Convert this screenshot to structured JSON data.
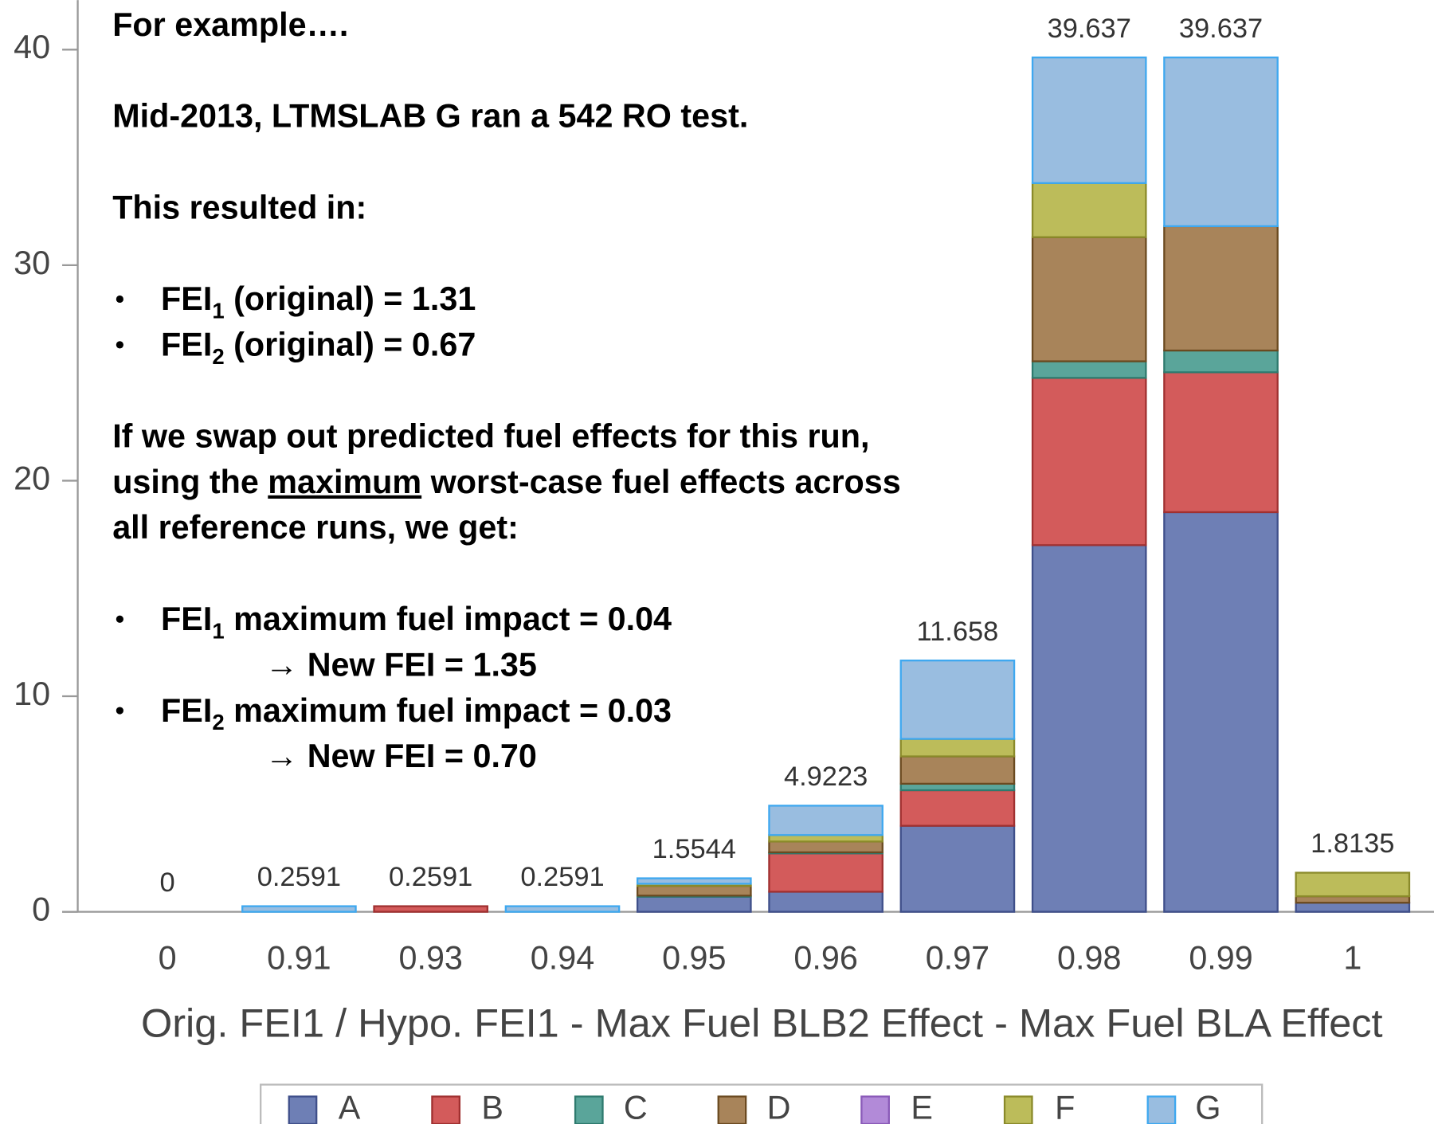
{
  "chart_data": {
    "type": "stacked-bar",
    "x_label": "Orig. FEI1 / Hypo. FEI1 - Max Fuel BLB2 Effect - Max Fuel BLA Effect",
    "categories": [
      "0",
      "0.91",
      "0.93",
      "0.94",
      "0.95",
      "0.96",
      "0.97",
      "0.98",
      "0.99",
      "1"
    ],
    "series": [
      {
        "name": "A",
        "color": "#6e7fb5",
        "edge": "#3f4f8a",
        "values": [
          0,
          0,
          0,
          0,
          0.7,
          0.93,
          3.99,
          17.01,
          18.54,
          0.42
        ]
      },
      {
        "name": "B",
        "color": "#d35b5b",
        "edge": "#a03030",
        "values": [
          0,
          0,
          0.2591,
          0,
          0,
          1.78,
          1.65,
          7.76,
          6.49,
          0
        ]
      },
      {
        "name": "C",
        "color": "#5aa59a",
        "edge": "#2e7a6e",
        "values": [
          0,
          0,
          0,
          0,
          0.05,
          0.05,
          0.3,
          0.77,
          1.01,
          0
        ]
      },
      {
        "name": "D",
        "color": "#a8845a",
        "edge": "#6b4a20",
        "values": [
          0,
          0,
          0,
          0,
          0.45,
          0.5,
          1.27,
          5.76,
          5.77,
          0.3
        ]
      },
      {
        "name": "E",
        "color": "#b28ad8",
        "edge": "#8a5ab8",
        "values": [
          0,
          0,
          0,
          0,
          0,
          0,
          0,
          0,
          0,
          0
        ]
      },
      {
        "name": "F",
        "color": "#bcbc5a",
        "edge": "#8a8a2a",
        "values": [
          0,
          0,
          0,
          0,
          0.1,
          0.3,
          0.81,
          2.51,
          0,
          1.0935
        ]
      },
      {
        "name": "G",
        "color": "#99bde0",
        "edge": "#3ea8f0",
        "values": [
          0,
          0.2591,
          0,
          0.2591,
          0.2544,
          1.3623,
          3.638,
          5.827,
          7.827,
          0
        ]
      }
    ],
    "totals": [
      0,
      0.2591,
      0.2591,
      0.2591,
      1.5544,
      4.9223,
      11.658,
      39.637,
      39.637,
      1.8135
    ],
    "ylim": [
      0,
      42.3
    ],
    "yticks": [
      0,
      10,
      20,
      30,
      40
    ],
    "legend": "bottom"
  },
  "overlay": {
    "heading": "For example….",
    "line1": "Mid-2013, LTMSLAB G ran a 542 RO test.",
    "line2": "This resulted in:",
    "bullets1": [
      {
        "pre": "FEI",
        "sub": "1",
        "post": " (original) = 1.31"
      },
      {
        "pre": "FEI",
        "sub": "2",
        "post": " (original) = 0.67"
      }
    ],
    "para": {
      "l1": "If we swap out predicted fuel effects for this run,",
      "l2pre": "using the ",
      "l2u": "maximum",
      "l2post": " worst-case fuel effects across",
      "l3": "all reference runs, we get:"
    },
    "bullets2": [
      {
        "pre": "FEI",
        "sub": "1",
        "post": " maximum fuel impact = 0.04",
        "result": "→ New FEI = 1.35"
      },
      {
        "pre": "FEI",
        "sub": "2",
        "post": " maximum fuel impact = 0.03",
        "result": "→ New FEI = 0.70"
      }
    ]
  }
}
